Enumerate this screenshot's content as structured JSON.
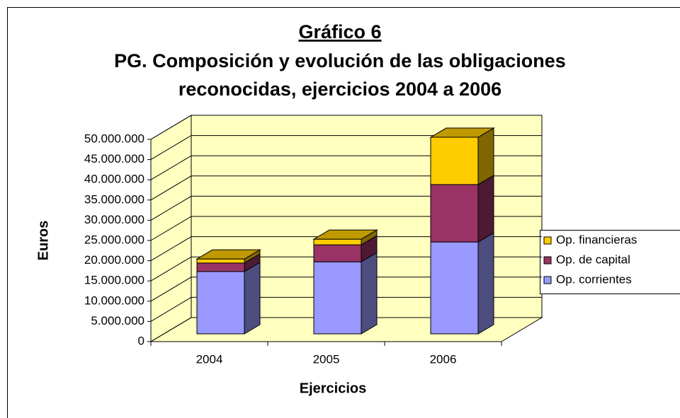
{
  "chart_data": {
    "type": "bar3d_stacked",
    "title": "Gráfico 6",
    "subtitle": [
      "PG. Composición y evolución de las obligaciones",
      "reconocidas, ejercicios 2004 a 2006"
    ],
    "x_label": "Ejercicios",
    "y_label": "Euros",
    "categories": [
      "2004",
      "2005",
      "2006"
    ],
    "series": [
      {
        "name": "Op. corrientes",
        "color": "#9999ff",
        "values": [
          15400000,
          17800000,
          22700000
        ]
      },
      {
        "name": "Op. de capital",
        "color": "#993366",
        "values": [
          2100000,
          4200000,
          14200000
        ]
      },
      {
        "name": "Op. financieras",
        "color": "#ffcc00",
        "values": [
          1000000,
          1400000,
          11700000
        ]
      }
    ],
    "ylim": [
      0,
      50000000
    ],
    "yticks": [
      0,
      {
        "value": 5000000,
        "label": "5.000.000"
      },
      {
        "value": 10000000,
        "label": "10.000.000"
      },
      {
        "value": 15000000,
        "label": "15.000.000"
      },
      {
        "value": 20000000,
        "label": "20.000.000"
      },
      {
        "value": 25000000,
        "label": "25.000.000"
      },
      {
        "value": 30000000,
        "label": "30.000.000"
      },
      {
        "value": 35000000,
        "label": "35.000.000"
      },
      {
        "value": 40000000,
        "label": "40.000.000"
      },
      {
        "value": 45000000,
        "label": "45.000.000"
      },
      {
        "value": 50000000,
        "label": "50.000.000"
      }
    ],
    "grid": true,
    "legend": "right"
  }
}
